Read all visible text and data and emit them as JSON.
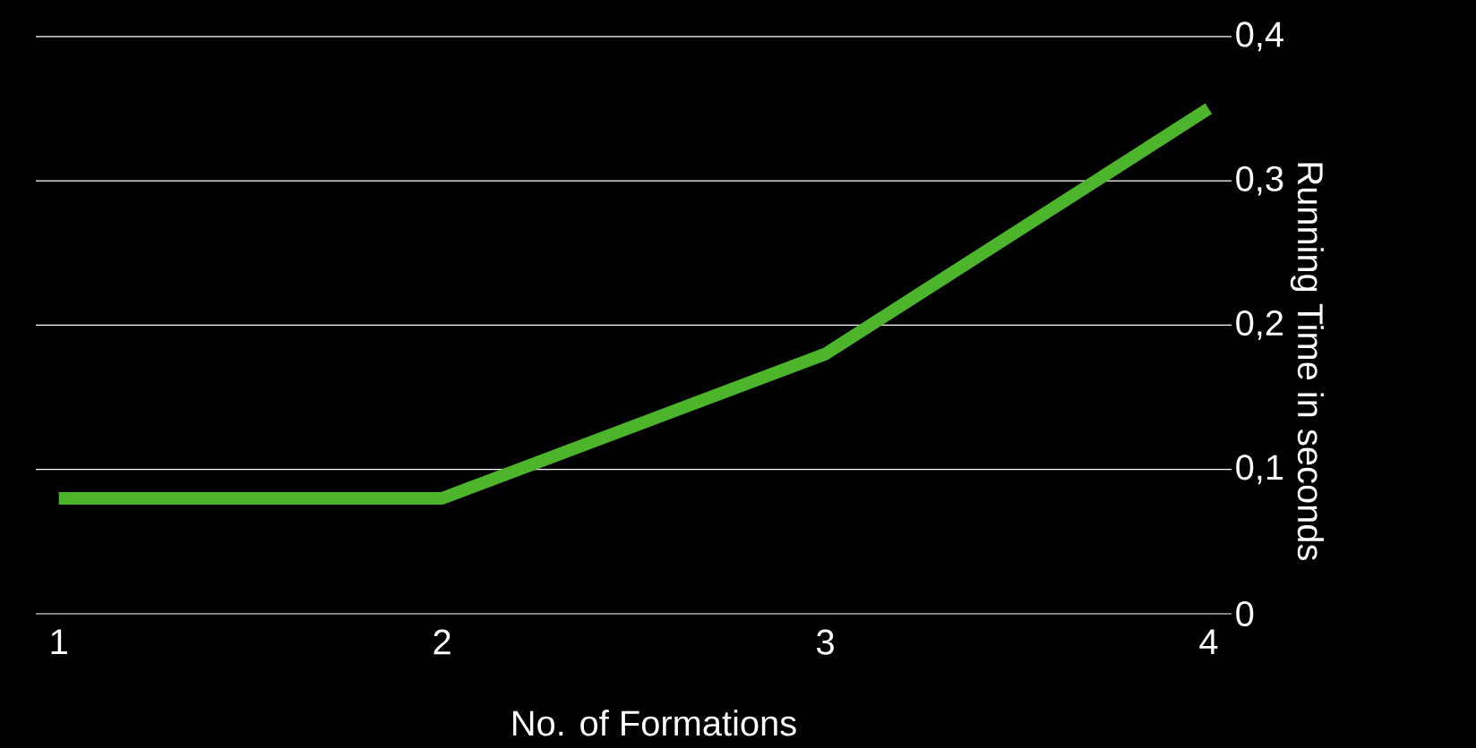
{
  "chart_data": {
    "type": "line",
    "xlabel": "No. of Formations",
    "ylabel": "Running Time in seconds",
    "categories": [
      "1",
      "2",
      "3",
      "4"
    ],
    "series": [
      {
        "color": "#4cb52c",
        "values": [
          0.08,
          0.08,
          0.18,
          0.35
        ]
      }
    ],
    "ylim": [
      0,
      0.4
    ],
    "yticks": [
      {
        "value": 0,
        "label": "0"
      },
      {
        "value": 0.1,
        "label": "0,1"
      },
      {
        "value": 0.2,
        "label": "0,2"
      },
      {
        "value": 0.3,
        "label": "0,3"
      },
      {
        "value": 0.4,
        "label": "0,4"
      }
    ],
    "grid": "y",
    "marker": "none",
    "line_style": "solid"
  }
}
